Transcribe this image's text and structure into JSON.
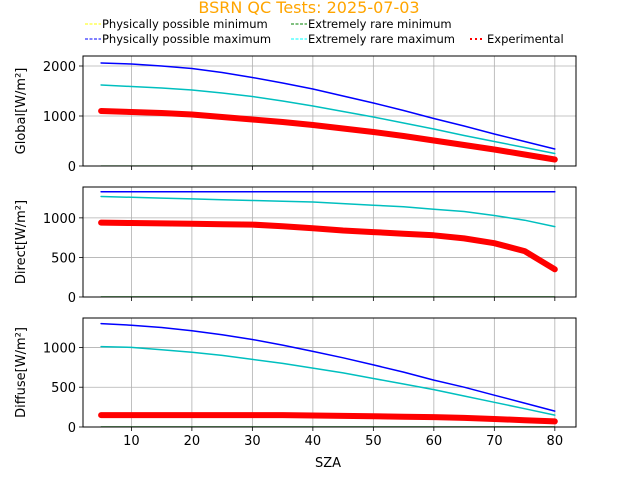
{
  "chart_data": {
    "type": "line",
    "title": "BSRN QC Tests: 2025-07-03",
    "title_color": "#ffa500",
    "xlabel": "SZA",
    "xlim": [
      2,
      83.5
    ],
    "x_ticks": [
      "10",
      "20",
      "30",
      "40",
      "50",
      "60",
      "70",
      "80"
    ],
    "x_tick_values": [
      10,
      20,
      30,
      40,
      50,
      60,
      70,
      80
    ],
    "grid": true,
    "legend": {
      "placement": "top-center",
      "entries": [
        {
          "label": "Physically possible minimum",
          "color": "#ffff00",
          "style": "dashed"
        },
        {
          "label": "Extremely rare minimum",
          "color": "#008000",
          "style": "dashed"
        },
        {
          "label": "Physically possible maximum",
          "color": "#0000ff",
          "style": "dashed"
        },
        {
          "label": "Extremely rare maximum",
          "color": "#00ffff",
          "style": "dashed"
        },
        {
          "label": "Experimental",
          "color": "#ff0000",
          "style": "dotted"
        }
      ]
    },
    "x": [
      5,
      10,
      15,
      20,
      25,
      30,
      35,
      40,
      45,
      50,
      55,
      60,
      65,
      70,
      75,
      80
    ],
    "panels": [
      {
        "ylabel": "Global[W/m²]",
        "ylim": [
          0,
          2200
        ],
        "y_ticks": [
          "0",
          "1000",
          "2000"
        ],
        "y_tick_values": [
          0,
          1000,
          2000
        ],
        "series": [
          {
            "name": "Physically possible minimum",
            "color": "#ffff00",
            "values": [
              -4,
              -4,
              -4,
              -4,
              -4,
              -4,
              -4,
              -4,
              -4,
              -4,
              -4,
              -4,
              -4,
              -4,
              -4,
              -4
            ]
          },
          {
            "name": "Extremely rare minimum",
            "color": "#008000",
            "values": [
              -2,
              -2,
              -2,
              -2,
              -2,
              -2,
              -2,
              -2,
              -2,
              -2,
              -2,
              -2,
              -2,
              -2,
              -2,
              -2
            ]
          },
          {
            "name": "Physically possible maximum",
            "color": "#0000ff",
            "values": [
              2060,
              2040,
              2000,
              1950,
              1870,
              1770,
              1660,
              1540,
              1400,
              1260,
              1110,
              950,
              800,
              640,
              490,
              340
            ]
          },
          {
            "name": "Extremely rare maximum",
            "color": "#00bfbf",
            "values": [
              1620,
              1590,
              1560,
              1520,
              1460,
              1390,
              1300,
              1200,
              1090,
              980,
              860,
              740,
              610,
              490,
              370,
              250
            ]
          },
          {
            "name": "Experimental",
            "color": "#ff0000",
            "values": [
              1100,
              1080,
              1060,
              1030,
              980,
              930,
              880,
              820,
              750,
              680,
              600,
              510,
              420,
              330,
              230,
              130
            ]
          }
        ]
      },
      {
        "ylabel": "Direct[W/m²]",
        "ylim": [
          0,
          1390
        ],
        "y_ticks": [
          "0",
          "500",
          "1000"
        ],
        "y_tick_values": [
          0,
          500,
          1000
        ],
        "series": [
          {
            "name": "Physically possible minimum",
            "color": "#ffff00",
            "values": [
              -4,
              -4,
              -4,
              -4,
              -4,
              -4,
              -4,
              -4,
              -4,
              -4,
              -4,
              -4,
              -4,
              -4,
              -4,
              -4
            ]
          },
          {
            "name": "Extremely rare minimum",
            "color": "#008000",
            "values": [
              0,
              0,
              0,
              0,
              0,
              0,
              0,
              0,
              0,
              0,
              0,
              0,
              0,
              0,
              0,
              0
            ]
          },
          {
            "name": "Physically possible maximum",
            "color": "#0000ff",
            "values": [
              1330,
              1330,
              1330,
              1330,
              1330,
              1330,
              1330,
              1330,
              1330,
              1330,
              1330,
              1330,
              1330,
              1330,
              1330,
              1330
            ]
          },
          {
            "name": "Extremely rare maximum",
            "color": "#00bfbf",
            "values": [
              1270,
              1260,
              1250,
              1240,
              1230,
              1220,
              1210,
              1200,
              1180,
              1160,
              1140,
              1110,
              1080,
              1030,
              970,
              890
            ]
          },
          {
            "name": "Experimental",
            "color": "#ff0000",
            "values": [
              940,
              935,
              930,
              925,
              920,
              915,
              895,
              870,
              840,
              820,
              800,
              780,
              740,
              680,
              580,
              350
            ]
          }
        ]
      },
      {
        "ylabel": "Diffuse[W/m²]",
        "ylim": [
          0,
          1370
        ],
        "y_ticks": [
          "0",
          "500",
          "1000"
        ],
        "y_tick_values": [
          0,
          500,
          1000
        ],
        "series": [
          {
            "name": "Physically possible minimum",
            "color": "#ffff00",
            "values": [
              -4,
              -4,
              -4,
              -4,
              -4,
              -4,
              -4,
              -4,
              -4,
              -4,
              -4,
              -4,
              -4,
              -4,
              -4,
              -4
            ]
          },
          {
            "name": "Extremely rare minimum",
            "color": "#008000",
            "values": [
              0,
              0,
              0,
              0,
              0,
              0,
              0,
              0,
              0,
              0,
              0,
              0,
              0,
              0,
              0,
              0
            ]
          },
          {
            "name": "Physically possible maximum",
            "color": "#0000ff",
            "values": [
              1300,
              1280,
              1250,
              1210,
              1160,
              1100,
              1030,
              950,
              870,
              780,
              690,
              590,
              500,
              400,
              300,
              200
            ]
          },
          {
            "name": "Extremely rare maximum",
            "color": "#00bfbf",
            "values": [
              1010,
              1000,
              970,
              940,
              900,
              850,
              800,
              740,
              680,
              610,
              540,
              470,
              390,
              310,
              230,
              150
            ]
          },
          {
            "name": "Experimental",
            "color": "#ff0000",
            "values": [
              150,
              150,
              150,
              150,
              150,
              150,
              150,
              145,
              140,
              135,
              130,
              125,
              115,
              100,
              85,
              70
            ]
          }
        ]
      }
    ]
  }
}
